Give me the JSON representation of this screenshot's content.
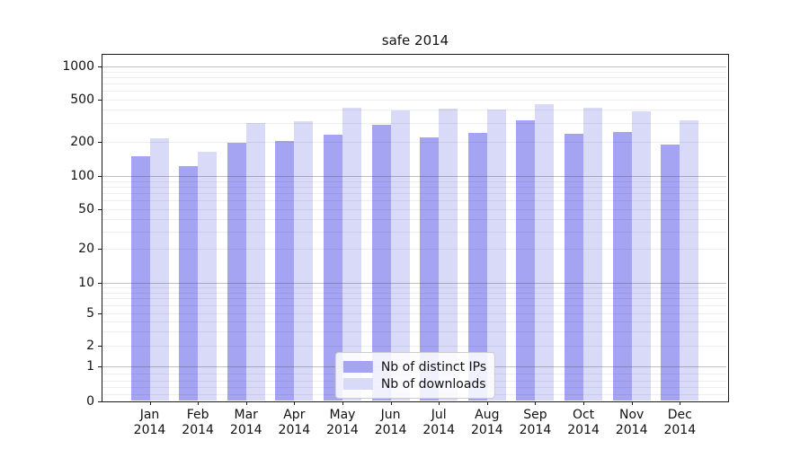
{
  "title": "safe 2014",
  "colors": {
    "ips": "#a4a4f2",
    "downloads": "#d9d9f8",
    "grid_major": "#b0b0b0",
    "grid_minor": "#ebebeb",
    "spine": "#1a1a1a"
  },
  "legend": {
    "items": [
      {
        "label": "Nb of distinct IPs",
        "series": "ips"
      },
      {
        "label": "Nb of downloads",
        "series": "downloads"
      }
    ]
  },
  "y_axis": {
    "tick_labels": [
      "1000",
      "500",
      "200",
      "100",
      "50",
      "20",
      "10",
      "5",
      "2",
      "1",
      "0"
    ],
    "ticks": [
      1000,
      500,
      200,
      100,
      50,
      20,
      10,
      5,
      2,
      1,
      0
    ]
  },
  "x_axis": {
    "months": [
      "Jan",
      "Feb",
      "Mar",
      "Apr",
      "May",
      "Jun",
      "Jul",
      "Aug",
      "Sep",
      "Oct",
      "Nov",
      "Dec"
    ],
    "year": "2014"
  },
  "chart_data": {
    "type": "bar",
    "title": "safe 2014",
    "categories": [
      "Jan 2014",
      "Feb 2014",
      "Mar 2014",
      "Apr 2014",
      "May 2014",
      "Jun 2014",
      "Jul 2014",
      "Aug 2014",
      "Sep 2014",
      "Oct 2014",
      "Nov 2014",
      "Dec 2014"
    ],
    "series": [
      {
        "name": "Nb of distinct IPs",
        "color_key": "ips",
        "values": [
          149,
          122,
          197,
          204,
          234,
          290,
          220,
          243,
          320,
          238,
          248,
          189
        ]
      },
      {
        "name": "Nb of downloads",
        "color_key": "downloads",
        "values": [
          216,
          165,
          301,
          313,
          420,
          396,
          411,
          403,
          450,
          420,
          388,
          320
        ]
      }
    ],
    "xlabel": "",
    "ylabel": "",
    "yscale": "symlog",
    "yticks": [
      0,
      1,
      2,
      5,
      10,
      20,
      50,
      100,
      200,
      500,
      1000
    ],
    "ylim": [
      0,
      1400
    ],
    "grid": true,
    "legend_position": "lower center"
  }
}
